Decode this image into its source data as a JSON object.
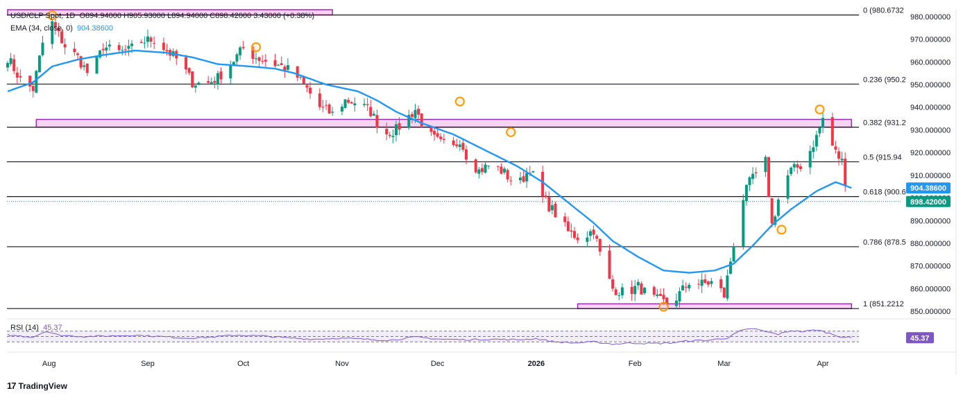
{
  "header": {
    "symbol": "USD/CLP Spot, 1D",
    "ohlc": "O894.94000 H905.93000 L894.94000 C898.42000 3.43000 (+0.38%)",
    "ema_label": "EMA (34, close, 0)",
    "ema_value": "904.38600",
    "rsi_label": "RSI (14)",
    "rsi_value": "45.37"
  },
  "brand": {
    "name": "TradingView",
    "logo_text": "17"
  },
  "colors": {
    "up": "#089981",
    "down": "#f23645",
    "ema": "#2196f3",
    "zone_fill": "#f4c6ee",
    "zone_border": "#9c27b0",
    "marker": "#ff9800",
    "rsi": "#7e57c2",
    "level_line": "#131722"
  },
  "chart_data": [
    {
      "type": "candlestick",
      "title": "USD/CLP Spot, 1D",
      "ylim": [
        847,
        983
      ],
      "yticks": [
        "850.000000",
        "860.000000",
        "870.000000",
        "880.000000",
        "890.000000",
        "900.000000",
        "910.000000",
        "920.000000",
        "930.000000",
        "940.000000",
        "950.000000",
        "960.000000",
        "970.000000",
        "980.000000"
      ],
      "xticks": [
        {
          "label": "Aug",
          "day": 13
        },
        {
          "label": "Sep",
          "day": 44
        },
        {
          "label": "Oct",
          "day": 74
        },
        {
          "label": "Nov",
          "day": 105
        },
        {
          "label": "Dec",
          "day": 135
        },
        {
          "label": "2026",
          "day": 166
        },
        {
          "label": "Feb",
          "day": 197
        },
        {
          "label": "Mar",
          "day": 225
        },
        {
          "label": "Apr",
          "day": 256
        }
      ],
      "last_day": 265,
      "price_anchors": [
        [
          0,
          962
        ],
        [
          4,
          952
        ],
        [
          8,
          948
        ],
        [
          12,
          975
        ],
        [
          14,
          977
        ],
        [
          18,
          967
        ],
        [
          22,
          962
        ],
        [
          26,
          953
        ],
        [
          30,
          967
        ],
        [
          34,
          964
        ],
        [
          38,
          965
        ],
        [
          42,
          969
        ],
        [
          46,
          970
        ],
        [
          50,
          965
        ],
        [
          54,
          960
        ],
        [
          58,
          951
        ],
        [
          62,
          950
        ],
        [
          66,
          953
        ],
        [
          70,
          959
        ],
        [
          74,
          966
        ],
        [
          78,
          962
        ],
        [
          82,
          960
        ],
        [
          86,
          958
        ],
        [
          90,
          955
        ],
        [
          94,
          948
        ],
        [
          98,
          940
        ],
        [
          102,
          937
        ],
        [
          106,
          943
        ],
        [
          110,
          942
        ],
        [
          114,
          938
        ],
        [
          118,
          928
        ],
        [
          122,
          930
        ],
        [
          126,
          936
        ],
        [
          128,
          939
        ],
        [
          132,
          928
        ],
        [
          136,
          924
        ],
        [
          140,
          922
        ],
        [
          142,
          926
        ],
        [
          144,
          919
        ],
        [
          148,
          912
        ],
        [
          152,
          915
        ],
        [
          156,
          911
        ],
        [
          160,
          905
        ],
        [
          164,
          913
        ],
        [
          168,
          900
        ],
        [
          172,
          893
        ],
        [
          176,
          885
        ],
        [
          180,
          882
        ],
        [
          184,
          886
        ],
        [
          187,
          870
        ],
        [
          190,
          860
        ],
        [
          194,
          858
        ],
        [
          198,
          861
        ],
        [
          202,
          856
        ],
        [
          206,
          854
        ],
        [
          208,
          853
        ],
        [
          210,
          856
        ],
        [
          214,
          863
        ],
        [
          218,
          862
        ],
        [
          222,
          863
        ],
        [
          225,
          857
        ],
        [
          228,
          880
        ],
        [
          231,
          900
        ],
        [
          234,
          910
        ],
        [
          236,
          908
        ],
        [
          238,
          916
        ],
        [
          240,
          888
        ],
        [
          243,
          905
        ],
        [
          246,
          912
        ],
        [
          250,
          915
        ],
        [
          254,
          927
        ],
        [
          256,
          935
        ],
        [
          258,
          926
        ],
        [
          260,
          920
        ],
        [
          262,
          916
        ],
        [
          264,
          900
        ],
        [
          265,
          898
        ]
      ],
      "ema": {
        "name": "EMA (34, close, 0)",
        "last": 904.386,
        "anchors": [
          [
            0,
            947
          ],
          [
            8,
            951
          ],
          [
            14,
            958
          ],
          [
            22,
            961
          ],
          [
            30,
            963
          ],
          [
            40,
            965
          ],
          [
            50,
            964
          ],
          [
            58,
            962
          ],
          [
            66,
            959
          ],
          [
            76,
            958
          ],
          [
            84,
            957
          ],
          [
            90,
            955
          ],
          [
            100,
            950
          ],
          [
            110,
            947
          ],
          [
            116,
            943
          ],
          [
            122,
            938
          ],
          [
            130,
            933
          ],
          [
            140,
            928
          ],
          [
            150,
            921
          ],
          [
            160,
            914
          ],
          [
            168,
            907
          ],
          [
            176,
            898
          ],
          [
            184,
            889
          ],
          [
            190,
            881
          ],
          [
            198,
            874
          ],
          [
            206,
            868
          ],
          [
            214,
            867
          ],
          [
            222,
            868
          ],
          [
            228,
            871
          ],
          [
            234,
            879
          ],
          [
            240,
            888
          ],
          [
            246,
            895
          ],
          [
            254,
            903
          ],
          [
            260,
            907
          ],
          [
            265,
            904.4
          ]
        ]
      },
      "fibonacci": [
        {
          "ratio": "0",
          "value": 980.6732,
          "label": "0 (980.6732"
        },
        {
          "ratio": "0.236",
          "value": 950.2,
          "label": "0.236 (950.2"
        },
        {
          "ratio": "0.382",
          "value": 931.2,
          "label": "0.382 (931.2"
        },
        {
          "ratio": "0.5",
          "value": 915.94,
          "label": "0.5 (915.94"
        },
        {
          "ratio": "0.618",
          "value": 900.6,
          "label": "0.618 (900.6"
        },
        {
          "ratio": "0.786",
          "value": 878.5,
          "label": "0.786 (878.5"
        },
        {
          "ratio": "1",
          "value": 851.2212,
          "label": "1 (851.2212"
        }
      ],
      "zones": [
        {
          "name": "upper-zone",
          "day_from": 0,
          "day_to": 102,
          "low": 980.7,
          "high": 983
        },
        {
          "name": "middle-zone",
          "day_from": 9,
          "day_to": 265,
          "low": 931.2,
          "high": 934.6
        },
        {
          "name": "lower-zone",
          "day_from": 179,
          "day_to": 265,
          "low": 851.2,
          "high": 853.3
        }
      ],
      "markers": [
        {
          "day": 14,
          "price": 980.5
        },
        {
          "day": 78,
          "price": 966.5
        },
        {
          "day": 142,
          "price": 942.5
        },
        {
          "day": 158,
          "price": 929
        },
        {
          "day": 206,
          "price": 852
        },
        {
          "day": 243,
          "price": 886
        },
        {
          "day": 255,
          "price": 939
        }
      ],
      "price_labels": [
        {
          "text": "904.38600",
          "value": 904.386,
          "color": "#2196f3"
        },
        {
          "text": "898.42000",
          "value": 898.42,
          "color": "#089981"
        }
      ],
      "last_close": 898.42
    },
    {
      "type": "line",
      "title": "RSI (14)",
      "ylim": [
        0,
        100
      ],
      "band": [
        30,
        70
      ],
      "last": 45.37,
      "anchors": [
        [
          0,
          55
        ],
        [
          8,
          48
        ],
        [
          12,
          70
        ],
        [
          16,
          55
        ],
        [
          24,
          50
        ],
        [
          32,
          52
        ],
        [
          40,
          55
        ],
        [
          48,
          50
        ],
        [
          56,
          44
        ],
        [
          64,
          48
        ],
        [
          72,
          55
        ],
        [
          80,
          52
        ],
        [
          88,
          45
        ],
        [
          96,
          40
        ],
        [
          104,
          44
        ],
        [
          112,
          40
        ],
        [
          120,
          36
        ],
        [
          128,
          48
        ],
        [
          136,
          40
        ],
        [
          144,
          38
        ],
        [
          152,
          40
        ],
        [
          160,
          38
        ],
        [
          166,
          42
        ],
        [
          172,
          30
        ],
        [
          178,
          26
        ],
        [
          184,
          30
        ],
        [
          190,
          22
        ],
        [
          196,
          26
        ],
        [
          202,
          24
        ],
        [
          208,
          26
        ],
        [
          214,
          34
        ],
        [
          220,
          36
        ],
        [
          226,
          45
        ],
        [
          230,
          70
        ],
        [
          234,
          80
        ],
        [
          238,
          68
        ],
        [
          242,
          58
        ],
        [
          246,
          72
        ],
        [
          250,
          68
        ],
        [
          254,
          75
        ],
        [
          258,
          62
        ],
        [
          262,
          48
        ],
        [
          265,
          45.37
        ]
      ]
    }
  ]
}
